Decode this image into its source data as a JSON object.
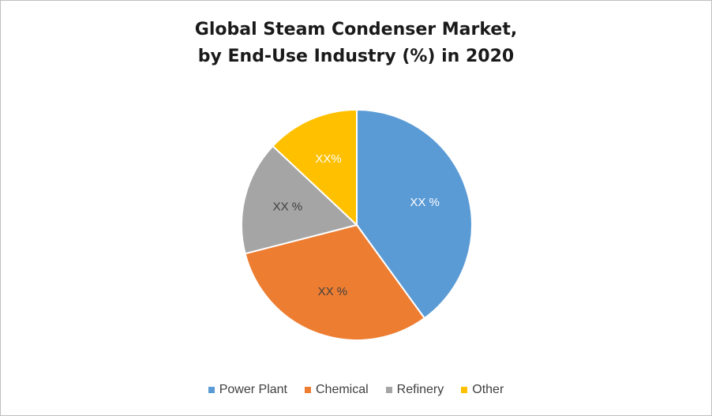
{
  "chart_data": {
    "type": "pie",
    "title_lines": [
      "Global Steam Condenser Market,",
      "by End-Use Industry  (%) in 2020"
    ],
    "slices": [
      {
        "name": "Power Plant",
        "value": 40,
        "label": "XX %",
        "color": "#5B9BD5",
        "label_color": "#ffffff"
      },
      {
        "name": "Chemical",
        "value": 31,
        "label": "XX %",
        "color": "#ED7D31",
        "label_color": "#404040"
      },
      {
        "name": "Refinery",
        "value": 16,
        "label": "XX %",
        "color": "#A5A5A5",
        "label_color": "#404040"
      },
      {
        "name": "Other",
        "value": 13,
        "label": "XX%",
        "color": "#FFC000",
        "label_color": "#ffffff"
      }
    ],
    "legend_position": "bottom"
  }
}
